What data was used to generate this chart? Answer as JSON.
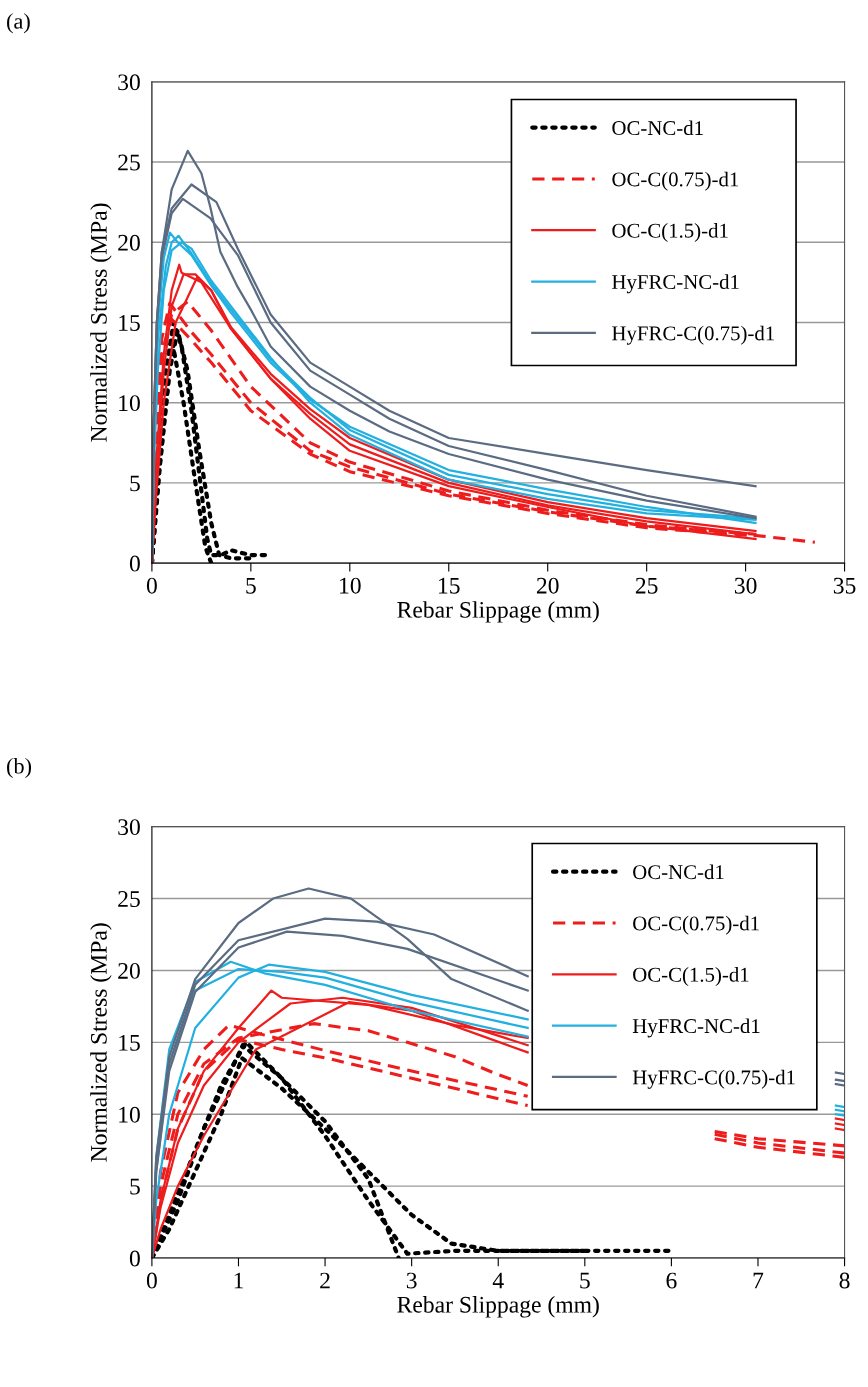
{
  "chart_data": [
    {
      "type": "line",
      "xlabel": "Rebar Slippage (mm)",
      "ylabel": "Normalized Stress (MPa)",
      "annotations": [
        "(a)"
      ],
      "xlim": [
        0,
        35
      ],
      "xticks": [
        0,
        5,
        10,
        15,
        20,
        25,
        30,
        35
      ],
      "ylim": [
        0,
        30
      ],
      "yticks": [
        0,
        5,
        10,
        15,
        20,
        25,
        30
      ],
      "grid": "y",
      "legend": "top right",
      "marker": "none",
      "series": [
        {
          "name": "OC-NC-d1",
          "color": "#000000",
          "line_style": "dotted",
          "x": [
            0,
            0.3,
            0.7,
            1.1,
            1.5,
            2.0,
            2.5,
            2.8,
            3.0,
            3.5,
            4.0,
            5.0,
            5.8
          ],
          "values": [
            0,
            7,
            12,
            15,
            13.5,
            9.5,
            4.5,
            1.5,
            0.5,
            0.5,
            0.8,
            0.5,
            0.5
          ]
        },
        {
          "color": "#000000",
          "line_style": "dotted",
          "x": [
            0,
            0.4,
            0.9,
            1.3,
            1.8,
            2.4,
            3.0,
            3.4,
            4.0,
            5.0
          ],
          "values": [
            0,
            6,
            12,
            14.5,
            12,
            7,
            2.5,
            0.5,
            0.3,
            0.3
          ]
        },
        {
          "color": "#000000",
          "line_style": "dotted",
          "x": [
            0,
            0.3,
            0.8,
            1.0,
            1.6,
            2.2,
            2.7,
            3.0
          ],
          "values": [
            0,
            5,
            11,
            14,
            10,
            5,
            1,
            0
          ]
        },
        {
          "name": "OC-C(0.75)-d1",
          "color": "#ee1c1c",
          "line_style": "dashed",
          "x": [
            0,
            0.2,
            0.5,
            1.0,
            1.8,
            3,
            5,
            8,
            10,
            15,
            20,
            25,
            30,
            33.5
          ],
          "values": [
            0,
            8,
            13,
            15.5,
            16.3,
            14.5,
            11,
            7.5,
            6.3,
            4.5,
            3.3,
            2.4,
            1.8,
            1.3
          ]
        },
        {
          "color": "#ee1c1c",
          "line_style": "dashed",
          "x": [
            0,
            0.2,
            0.5,
            0.9,
            2,
            3,
            5,
            8,
            10,
            15,
            20,
            25,
            30.5
          ],
          "values": [
            0,
            9,
            14,
            16.2,
            14.4,
            13,
            10,
            7,
            6,
            4.3,
            3.2,
            2.3,
            1.8
          ]
        },
        {
          "color": "#ee1c1c",
          "line_style": "dashed",
          "x": [
            0,
            0.2,
            0.5,
            1.0,
            2,
            3,
            5,
            8,
            10,
            15,
            20,
            25,
            30.5
          ],
          "values": [
            0,
            8,
            13,
            15.2,
            13.9,
            12.5,
            9.5,
            6.8,
            5.7,
            4.2,
            3.1,
            2.2,
            1.7
          ]
        },
        {
          "name": "OC-C(1.5)-d1",
          "color": "#ee1c1c",
          "line_style": "solid",
          "x": [
            0,
            0.2,
            0.6,
            1.0,
            1.38,
            1.5,
            2.5,
            4,
            6,
            8,
            10,
            15,
            20,
            25,
            30.5
          ],
          "values": [
            0,
            6,
            13,
            17,
            18.6,
            18.1,
            17.5,
            14.6,
            11.5,
            9,
            7,
            4.8,
            3.5,
            2.3,
            1.5
          ]
        },
        {
          "color": "#ee1c1c",
          "line_style": "solid",
          "x": [
            0,
            0.2,
            0.6,
            1.0,
            1.6,
            2.2,
            3,
            4,
            6,
            8,
            10,
            15,
            20,
            25,
            30.5
          ],
          "values": [
            0,
            5,
            12,
            16,
            18,
            18,
            17,
            14.6,
            11.5,
            9.3,
            7.4,
            5,
            3.6,
            2.6,
            1.8
          ]
        },
        {
          "color": "#ee1c1c",
          "line_style": "solid",
          "x": [
            0,
            0.2,
            0.6,
            1.2,
            2.28,
            3,
            4,
            6,
            8,
            10,
            15,
            20,
            25,
            30.5
          ],
          "values": [
            0,
            4,
            10,
            15,
            17.8,
            17.0,
            14.7,
            11.8,
            9.6,
            7.8,
            5.2,
            3.8,
            2.8,
            2
          ]
        },
        {
          "name": "HyFRC-NC-d1",
          "color": "#22b0e0",
          "line_style": "solid",
          "x": [
            0,
            0.1,
            0.3,
            0.6,
            0.91,
            1.3,
            2,
            3,
            4,
            6,
            8,
            10,
            15,
            20,
            25,
            30.5
          ],
          "values": [
            0,
            8,
            15,
            19,
            20.6,
            20,
            19.2,
            17.3,
            15.6,
            12.5,
            10.2,
            8.5,
            5.8,
            4.6,
            3.5,
            2.5
          ]
        },
        {
          "color": "#22b0e0",
          "line_style": "solid",
          "x": [
            0,
            0.1,
            0.3,
            0.7,
            1.0,
            1.35,
            2,
            3,
            4,
            6,
            8,
            10,
            15,
            20,
            25,
            30.5
          ],
          "values": [
            0,
            7,
            14,
            18.5,
            20,
            20.4,
            19.3,
            17.4,
            15.8,
            12.7,
            10.3,
            8.3,
            5.5,
            4.3,
            3.3,
            2.8
          ]
        },
        {
          "color": "#22b0e0",
          "line_style": "solid",
          "x": [
            0,
            0.1,
            0.3,
            0.6,
            1.0,
            1.5,
            2,
            3,
            4,
            6,
            8,
            10,
            15,
            20,
            25,
            30.5
          ],
          "values": [
            0,
            6,
            12,
            17,
            19.5,
            20,
            19.6,
            17.6,
            16,
            12.8,
            10,
            8,
            5.2,
            4,
            3.1,
            2.7
          ]
        },
        {
          "name": "HyFRC-C(0.75)-d1",
          "color": "#5b6b82",
          "line_style": "solid",
          "x": [
            0,
            0.1,
            0.25,
            0.5,
            1.0,
            1.81,
            2.5,
            2.95,
            3.46,
            4.34,
            5,
            6,
            8,
            10,
            12,
            15,
            20,
            25,
            30.5
          ],
          "values": [
            0,
            9,
            15,
            19.4,
            23.3,
            25.7,
            24.3,
            22.2,
            19.4,
            17.2,
            15.8,
            13.5,
            11,
            9.5,
            8.2,
            6.8,
            5.2,
            3.9,
            2.8
          ]
        },
        {
          "color": "#5b6b82",
          "line_style": "solid",
          "x": [
            0,
            0.1,
            0.25,
            0.5,
            1.0,
            2.0,
            3.26,
            4.34,
            6,
            8,
            10,
            12,
            15,
            20,
            25,
            30.5
          ],
          "values": [
            0,
            9,
            15,
            19.4,
            22.1,
            23.6,
            22.5,
            19.6,
            15.5,
            12.5,
            11,
            9.5,
            7.8,
            6.8,
            5.8,
            4.8
          ]
        },
        {
          "color": "#5b6b82",
          "line_style": "solid",
          "x": [
            0,
            0.1,
            0.25,
            0.5,
            1.0,
            1.56,
            2.95,
            4.34,
            6,
            8,
            10,
            12,
            15,
            20,
            25,
            30.5
          ],
          "values": [
            0,
            9,
            15,
            19,
            21.8,
            22.7,
            21.5,
            19.2,
            15,
            12,
            10.5,
            9,
            7.3,
            5.8,
            4.2,
            2.9
          ]
        }
      ]
    },
    {
      "type": "line",
      "xlabel": "Rebar Slippage (mm)",
      "ylabel": "Normalized Stress (MPa)",
      "annotations": [
        "(b)"
      ],
      "xlim": [
        0,
        8
      ],
      "xticks": [
        0,
        1,
        2,
        3,
        4,
        5,
        6,
        7,
        8
      ],
      "ylim": [
        0,
        30
      ],
      "yticks": [
        0,
        5,
        10,
        15,
        20,
        25,
        30
      ],
      "grid": "y",
      "legend": "top right",
      "marker": "none",
      "series": [
        {
          "name": "OC-NC-d1",
          "color": "#000000",
          "line_style": "dotted",
          "x": [
            0,
            0.2,
            0.5,
            0.8,
            1.09,
            1.5,
            2,
            2.5,
            2.95,
            3.5,
            4,
            5,
            6
          ],
          "values": [
            0,
            3,
            7.5,
            12,
            15,
            12.5,
            8.5,
            4,
            0.3,
            0.5,
            0.5,
            0.5,
            0.5
          ]
        },
        {
          "color": "#000000",
          "line_style": "dotted",
          "x": [
            0,
            0.2,
            0.5,
            0.8,
            1.04,
            1.5,
            2,
            2.5,
            3,
            3.46,
            4,
            5
          ],
          "values": [
            0,
            2,
            6,
            10,
            13.9,
            11.8,
            9,
            6,
            3,
            1,
            0.5,
            0.5
          ]
        },
        {
          "color": "#000000",
          "line_style": "dotted",
          "x": [
            0,
            0.3,
            0.6,
            1.05,
            1.5,
            2,
            2.5,
            2.85
          ],
          "values": [
            0,
            4,
            9,
            14.8,
            12.5,
            9.5,
            5.5,
            0
          ]
        },
        {
          "name": "OC-C(0.75)-d1",
          "color": "#ee1c1c",
          "line_style": "dashed",
          "x": [
            0,
            0.1,
            0.3,
            0.6,
            1.0,
            1.87,
            2.5,
            2.95,
            3.5,
            3.98,
            4.34,
            5,
            6.5,
            7,
            8
          ],
          "values": [
            0,
            5,
            10,
            13.5,
            15.3,
            16.3,
            15.8,
            15.0,
            14,
            12.8,
            12,
            null,
            8.8,
            8.3,
            7.8
          ]
        },
        {
          "color": "#ee1c1c",
          "line_style": "dashed",
          "x": [
            0,
            0.1,
            0.3,
            0.6,
            0.89,
            1.3,
            2.02,
            3,
            4.34,
            5,
            6.5,
            7,
            8
          ],
          "values": [
            0,
            6,
            11.5,
            14.5,
            16.2,
            15.5,
            14.4,
            13,
            11.25,
            null,
            8.6,
            8,
            7.3
          ]
        },
        {
          "color": "#ee1c1c",
          "line_style": "dashed",
          "x": [
            0,
            0.1,
            0.3,
            0.6,
            1.0,
            1.5,
            2.02,
            3,
            4.34,
            5,
            6.5,
            7,
            8
          ],
          "values": [
            0,
            4,
            9,
            13,
            15.2,
            14.5,
            13.9,
            12.5,
            10.6,
            null,
            8.3,
            7.7,
            7.0
          ]
        },
        {
          "name": "OC-C(1.5)-d1",
          "color": "#ee1c1c",
          "line_style": "solid",
          "x": [
            0,
            0.1,
            0.3,
            0.6,
            1.0,
            1.38,
            1.5,
            2.5,
            3.5,
            4.34,
            5,
            7.9,
            8
          ],
          "values": [
            0,
            4,
            9,
            13,
            16,
            18.6,
            18.1,
            17.6,
            16.2,
            15.3,
            null,
            9.7,
            9.6
          ]
        },
        {
          "color": "#ee1c1c",
          "line_style": "solid",
          "x": [
            0,
            0.1,
            0.3,
            0.6,
            1.0,
            1.6,
            2.2,
            3,
            4.34,
            5,
            7.9,
            8
          ],
          "values": [
            0,
            3.5,
            8,
            12,
            15,
            17.7,
            18.1,
            17.4,
            14.8,
            null,
            9.0,
            8.9
          ]
        },
        {
          "color": "#ee1c1c",
          "line_style": "solid",
          "x": [
            0,
            0.1,
            0.3,
            0.6,
            1.2,
            2.28,
            3,
            4.34,
            5,
            7.9,
            8
          ],
          "values": [
            0,
            2,
            5,
            8.5,
            14.5,
            17.8,
            17.2,
            14.3,
            null,
            9.35,
            9.25
          ]
        },
        {
          "name": "HyFRC-NC-d1",
          "color": "#22b0e0",
          "line_style": "solid",
          "x": [
            0,
            0.05,
            0.2,
            0.5,
            0.91,
            1.3,
            2,
            3,
            4.34,
            5,
            7.9,
            8
          ],
          "values": [
            0,
            7,
            14.5,
            19.2,
            20.6,
            19.8,
            19.0,
            17.2,
            15.4,
            null,
            10.6,
            10.5
          ]
        },
        {
          "color": "#22b0e0",
          "line_style": "solid",
          "x": [
            0,
            0.05,
            0.2,
            0.5,
            1.0,
            1.35,
            2,
            3,
            4.34,
            5,
            7.9,
            8
          ],
          "values": [
            0,
            4,
            10,
            16,
            19.5,
            20.4,
            19.9,
            18.3,
            16.6,
            null,
            10.3,
            10.2
          ]
        },
        {
          "color": "#22b0e0",
          "line_style": "solid",
          "x": [
            0,
            0.05,
            0.2,
            0.5,
            1.0,
            1.5,
            2,
            3,
            4.34,
            5,
            7.9,
            8
          ],
          "values": [
            0,
            6,
            13.5,
            18.6,
            20.1,
            19.9,
            19.5,
            17.8,
            16.0,
            null,
            10.0,
            9.9
          ]
        },
        {
          "name": "HyFRC-C(0.75)-d1",
          "color": "#5b6b82",
          "line_style": "solid",
          "x": [
            0,
            0.05,
            0.2,
            0.5,
            1.0,
            1.4,
            1.81,
            2.3,
            2.95,
            3.46,
            4.34,
            5,
            7.9,
            8
          ],
          "values": [
            0,
            7,
            14,
            19.4,
            23.3,
            25,
            25.7,
            25,
            22.2,
            19.4,
            17.2,
            null,
            12.4,
            12.3
          ]
        },
        {
          "color": "#5b6b82",
          "line_style": "solid",
          "x": [
            0,
            0.05,
            0.2,
            0.5,
            1.0,
            2.0,
            2.6,
            3.26,
            4.34,
            5,
            7.9,
            8
          ],
          "values": [
            0,
            6.5,
            13.5,
            19,
            22.1,
            23.6,
            23.4,
            22.5,
            19.6,
            null,
            12.9,
            12.8
          ]
        },
        {
          "color": "#5b6b82",
          "line_style": "solid",
          "x": [
            0,
            0.05,
            0.2,
            0.5,
            1.0,
            1.56,
            2.2,
            2.95,
            4.34,
            5,
            7.9,
            8
          ],
          "values": [
            0,
            6,
            13,
            18.5,
            21.6,
            22.7,
            22.4,
            21.5,
            18.6,
            null,
            12.1,
            12.0
          ]
        }
      ]
    }
  ]
}
